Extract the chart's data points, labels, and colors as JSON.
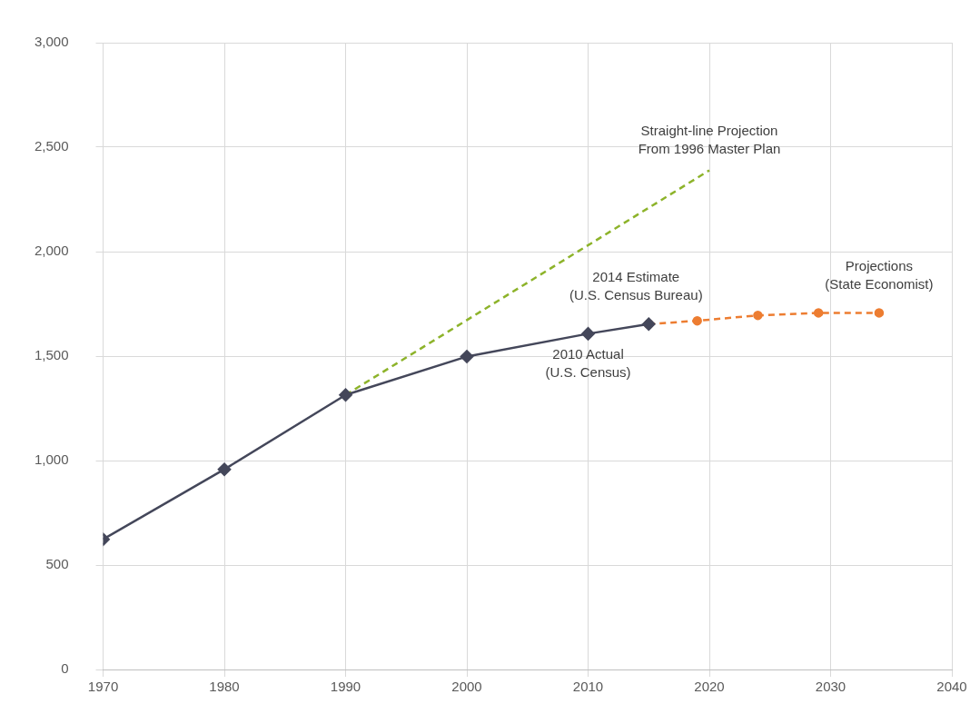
{
  "chart_data": {
    "type": "line",
    "series": [
      {
        "color": "#44475a",
        "x": [
          1970,
          1980,
          1990,
          2000,
          2010,
          2015
        ],
        "values": [
          623,
          958,
          1314,
          1498,
          1607,
          1653
        ],
        "line_style": "solid",
        "marker": "diamond"
      },
      {
        "color": "#8db32a",
        "x": [
          1990,
          2020
        ],
        "values": [
          1314,
          2389
        ],
        "line_style": "dashed",
        "marker": "none"
      },
      {
        "color": "#ed7d31",
        "x": [
          2015,
          2019,
          2024,
          2029,
          2034
        ],
        "values": [
          1653,
          1669,
          1695,
          1707,
          1707
        ],
        "line_style": "dashed",
        "marker": "circle"
      }
    ],
    "xlim": [
      1970,
      2040
    ],
    "xticks": [
      1970,
      1980,
      1990,
      2000,
      2010,
      2020,
      2030,
      2040
    ],
    "ylim": [
      0,
      3000
    ],
    "yticks": [
      0,
      500,
      {
        "value": 1000,
        "label": "1,000"
      },
      {
        "value": 1500,
        "label": "1,500"
      },
      {
        "value": 2000,
        "label": "2,000"
      },
      {
        "value": 2500,
        "label": "2,500"
      },
      {
        "value": 3000,
        "label": "3,000"
      }
    ],
    "grid": true,
    "legend": false,
    "annotations": [
      {
        "text": "Straight-line Projection\nFrom 1996 Master Plan",
        "x": 2020,
        "y": 2389
      },
      {
        "text": "2014 Estimate\n(U.S. Census Bureau)",
        "x": 2015,
        "y": 1653
      },
      {
        "text": "2010 Actual\n(U.S. Census)",
        "x": 2010,
        "y": 1607
      },
      {
        "text": "Projections\n(State Economist)",
        "x": 2034,
        "y": 1707
      }
    ]
  }
}
